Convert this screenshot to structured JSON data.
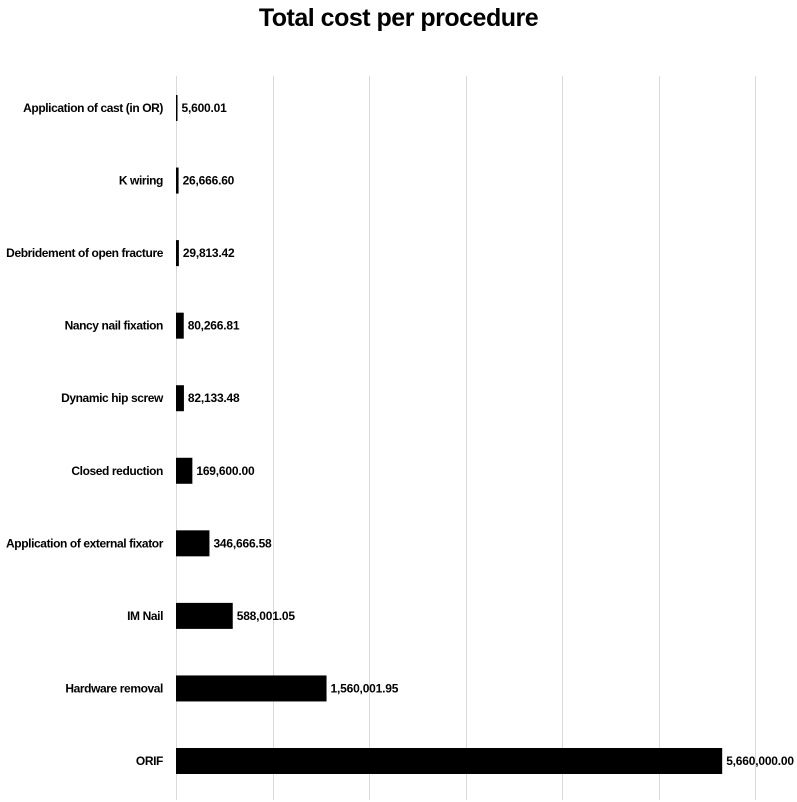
{
  "chart_data": {
    "type": "bar",
    "orientation": "horizontal",
    "title": "Total cost per procedure",
    "categories": [
      "Application of cast (in OR)",
      "K wiring",
      "Debridement of open fracture",
      "Nancy nail fixation",
      "Dynamic hip screw",
      "Closed reduction",
      "Application of external fixator",
      "IM Nail",
      "Hardware removal",
      "ORIF"
    ],
    "values": [
      5600.01,
      26666.6,
      29813.42,
      80266.81,
      82133.48,
      169600.0,
      346666.58,
      588001.05,
      1560001.95,
      5660000.0
    ],
    "value_labels": [
      "5,600.01",
      "26,666.60",
      "29,813.42",
      "80,266.81",
      "82,133.48",
      "169,600.00",
      "346,666.58",
      "588,001.05",
      "1,560,001.95",
      "5,660,000.00"
    ],
    "xlim": [
      0,
      6000000
    ],
    "grid_step": 1000000,
    "grid": true,
    "legend": "none",
    "bar_color": "#000000",
    "grid_color": "#d9d9d9"
  }
}
